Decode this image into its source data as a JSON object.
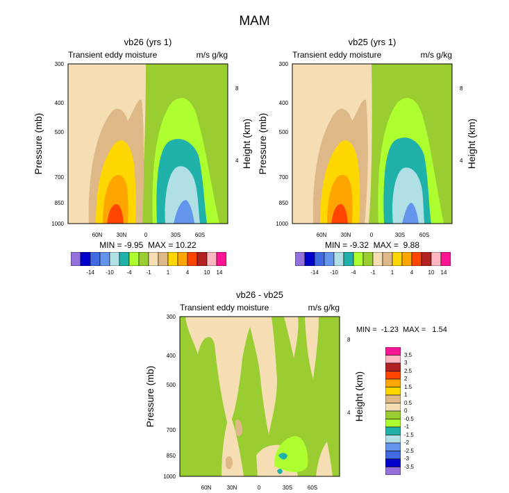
{
  "figure": {
    "title": "MAM"
  },
  "chart_data": [
    {
      "type": "heatmap",
      "title": "vb26 (yrs 1)",
      "left_label": "Transient eddy moisture",
      "right_label": "m/s g/kg",
      "ylabel": "Pressure (mb)",
      "y2label": "Height (km)",
      "xticks": [
        "60N",
        "30N",
        "0",
        "30S",
        "60S"
      ],
      "yticks": [
        "300",
        "400",
        "500",
        "700",
        "850",
        "1000"
      ],
      "y2ticks": [
        "8",
        "4"
      ],
      "stats": "MIN = -9.95  MAX = 10.22",
      "palette": [
        "#9370DB",
        "#0000CD",
        "#4169E1",
        "#6495ED",
        "#B0E0E6",
        "#20B2AA",
        "#ADFF2F",
        "#9ACD32",
        "#F5DEB3",
        "#DEB887",
        "#FFD700",
        "#FFA500",
        "#FF4500",
        "#B22222",
        "#FFB6C1",
        "#FF1493"
      ],
      "colorbar_labels": [
        "-14",
        "-10",
        "-4",
        "-1",
        "1",
        "4",
        "10",
        "14"
      ]
    },
    {
      "type": "heatmap",
      "title": "vb25 (yrs 1)",
      "left_label": "Transient eddy moisture",
      "right_label": "m/s g/kg",
      "ylabel": "Pressure (mb)",
      "y2label": "Height (km)",
      "xticks": [
        "60N",
        "30N",
        "0",
        "30S",
        "60S"
      ],
      "yticks": [
        "300",
        "400",
        "500",
        "700",
        "850",
        "1000"
      ],
      "y2ticks": [
        "8",
        "4"
      ],
      "stats": "MIN = -9.32  MAX =  9.88",
      "palette": [
        "#9370DB",
        "#0000CD",
        "#4169E1",
        "#6495ED",
        "#B0E0E6",
        "#20B2AA",
        "#ADFF2F",
        "#9ACD32",
        "#F5DEB3",
        "#DEB887",
        "#FFD700",
        "#FFA500",
        "#FF4500",
        "#B22222",
        "#FFB6C1",
        "#FF1493"
      ],
      "colorbar_labels": [
        "-14",
        "-10",
        "-4",
        "-1",
        "1",
        "4",
        "10",
        "14"
      ]
    },
    {
      "type": "heatmap",
      "title": "vb26 - vb25",
      "left_label": "Transient eddy moisture",
      "right_label": "m/s g/kg",
      "ylabel": "Pressure (mb)",
      "y2label": "Height (km)",
      "xticks": [
        "60N",
        "30N",
        "0",
        "30S",
        "60S"
      ],
      "yticks": [
        "300",
        "400",
        "500",
        "700",
        "850",
        "1000"
      ],
      "y2ticks": [
        "8",
        "4"
      ],
      "stats": "MIN =  -1.23  MAX =   1.54",
      "palette": [
        "#FF1493",
        "#FFB6C1",
        "#B22222",
        "#FF4500",
        "#FFA500",
        "#FFD700",
        "#DEB887",
        "#F5DEB3",
        "#9ACD32",
        "#ADFF2F",
        "#20B2AA",
        "#B0E0E6",
        "#6495ED",
        "#4169E1",
        "#0000CD",
        "#9370DB"
      ],
      "colorbar_labels": [
        "3.5",
        "3",
        "2.5",
        "2",
        "1.5",
        "1",
        "0.5",
        "0",
        "-0.5",
        "-1",
        "-1.5",
        "-2",
        "-2.5",
        "-3",
        "-3.5"
      ]
    }
  ]
}
